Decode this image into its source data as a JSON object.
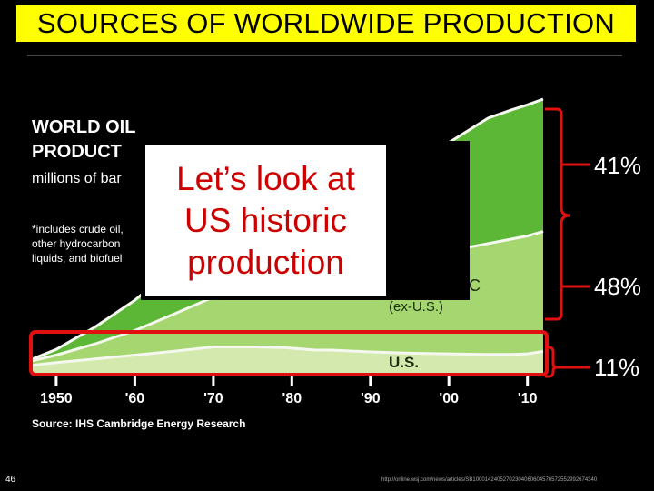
{
  "slide": {
    "title": "SOURCES OF WORLDWIDE PRODUCTION",
    "overlay_lines": [
      "Let’s look at",
      "US historic",
      "production"
    ],
    "percent_labels": [
      "41%",
      "48%",
      "11%"
    ],
    "slide_number": "46",
    "source_url": "http://online.wsj.com/news/articles/SB10001424052702304060604576572552992674340"
  },
  "chart_data": {
    "type": "area",
    "title_lines": [
      "WORLD OIL",
      "PRODUCT"
    ],
    "subtitle": "millions of bar",
    "footnote_lines": [
      "*includes crude oil,",
      "other hydrocarbon",
      "liquids, and biofuel"
    ],
    "x_tick_labels": [
      "1950",
      "'60",
      "'70",
      "'80",
      "'90",
      "'00",
      "'10"
    ],
    "x_ticks": [
      1950,
      1960,
      1970,
      1980,
      1990,
      2000,
      2010
    ],
    "source": "Source: IHS Cambridge Energy Research",
    "series_labels": [
      "C",
      "(ex-U.S.)",
      "U.S."
    ],
    "x": [
      1947,
      1950,
      1955,
      1960,
      1965,
      1970,
      1973,
      1975,
      1979,
      1983,
      1985,
      1990,
      1995,
      2000,
      2005,
      2008,
      2010,
      2012
    ],
    "series": [
      {
        "values": [
          1.5,
          1.9,
          2.5,
          3.1,
          3.7,
          4.4,
          4.4,
          4.4,
          4.3,
          3.9,
          3.9,
          3.6,
          3.4,
          3.3,
          3.2,
          3.2,
          3.3,
          3.7
        ]
      },
      {
        "values": [
          0.7,
          1.2,
          2.4,
          3.9,
          5.9,
          7.9,
          9.8,
          10.3,
          11.4,
          11.8,
          12.0,
          12.9,
          14.6,
          16.3,
          17.6,
          18.3,
          18.7,
          19.0
        ]
      },
      {
        "values": [
          0.3,
          0.9,
          2.7,
          4.8,
          7.4,
          11.6,
          14.4,
          14.2,
          15.5,
          12.0,
          12.3,
          13.5,
          14.9,
          17.2,
          19.9,
          20.5,
          20.8,
          21.0
        ]
      }
    ],
    "colors": [
      "#d3e9ae",
      "#a5d670",
      "#5cb737"
    ],
    "ylim": [
      0,
      45
    ],
    "xlim": [
      1947,
      2012
    ]
  }
}
